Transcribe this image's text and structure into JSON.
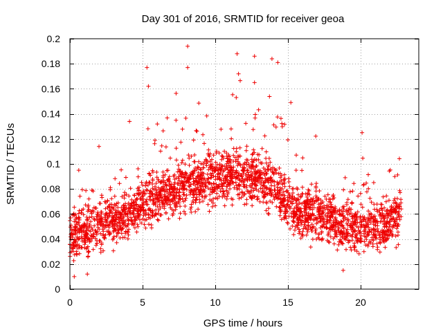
{
  "chart_data": {
    "type": "scatter",
    "title": "Day 301 of 2016, SRMTID for receiver geoa",
    "xlabel": "GPS time / hours",
    "ylabel": "SRMTID / TECUs",
    "xlim": [
      0,
      24
    ],
    "ylim": [
      0,
      0.2
    ],
    "xticks": [
      0,
      5,
      10,
      15,
      20
    ],
    "xtick_labels": [
      "0",
      "5",
      "10",
      "15",
      "20"
    ],
    "yticks": [
      0,
      0.02,
      0.04,
      0.06,
      0.08,
      0.1,
      0.12,
      0.14,
      0.16,
      0.18,
      0.2
    ],
    "ytick_labels": [
      "0",
      "0.02",
      "0.04",
      "0.06",
      "0.08",
      "0.1",
      "0.12",
      "0.14",
      "0.16",
      "0.18",
      "0.2"
    ],
    "grid": true,
    "marker": "+",
    "series": [
      {
        "name": "SRMTID",
        "color": "#ee0000",
        "x_range": [
          0,
          22.8
        ],
        "baseline_profile": [
          [
            0,
            0.042
          ],
          [
            1,
            0.046
          ],
          [
            2,
            0.05
          ],
          [
            3,
            0.055
          ],
          [
            4,
            0.058
          ],
          [
            5,
            0.068
          ],
          [
            6,
            0.072
          ],
          [
            7,
            0.078
          ],
          [
            8,
            0.082
          ],
          [
            9,
            0.086
          ],
          [
            10,
            0.09
          ],
          [
            11,
            0.092
          ],
          [
            12,
            0.09
          ],
          [
            13,
            0.088
          ],
          [
            14,
            0.084
          ],
          [
            15,
            0.066
          ],
          [
            16,
            0.062
          ],
          [
            17,
            0.06
          ],
          [
            18,
            0.055
          ],
          [
            19,
            0.05
          ],
          [
            20,
            0.052
          ],
          [
            21,
            0.05
          ],
          [
            22,
            0.052
          ],
          [
            22.8,
            0.058
          ]
        ],
        "notable_points": [
          {
            "x": 8.1,
            "y": 0.194
          },
          {
            "x": 12.7,
            "y": 0.186
          },
          {
            "x": 11.5,
            "y": 0.188
          },
          {
            "x": 14.3,
            "y": 0.181
          },
          {
            "x": 8.1,
            "y": 0.177
          },
          {
            "x": 5.3,
            "y": 0.177
          },
          {
            "x": 13.9,
            "y": 0.184
          },
          {
            "x": 11.6,
            "y": 0.172
          },
          {
            "x": 5.4,
            "y": 0.162
          },
          {
            "x": 12.7,
            "y": 0.165
          },
          {
            "x": 15.2,
            "y": 0.149
          },
          {
            "x": 4.1,
            "y": 0.134
          },
          {
            "x": 2.0,
            "y": 0.114
          },
          {
            "x": 20.1,
            "y": 0.125
          },
          {
            "x": 0.3,
            "y": 0.01
          },
          {
            "x": 1.2,
            "y": 0.012
          },
          {
            "x": 18.8,
            "y": 0.015
          }
        ]
      }
    ]
  }
}
